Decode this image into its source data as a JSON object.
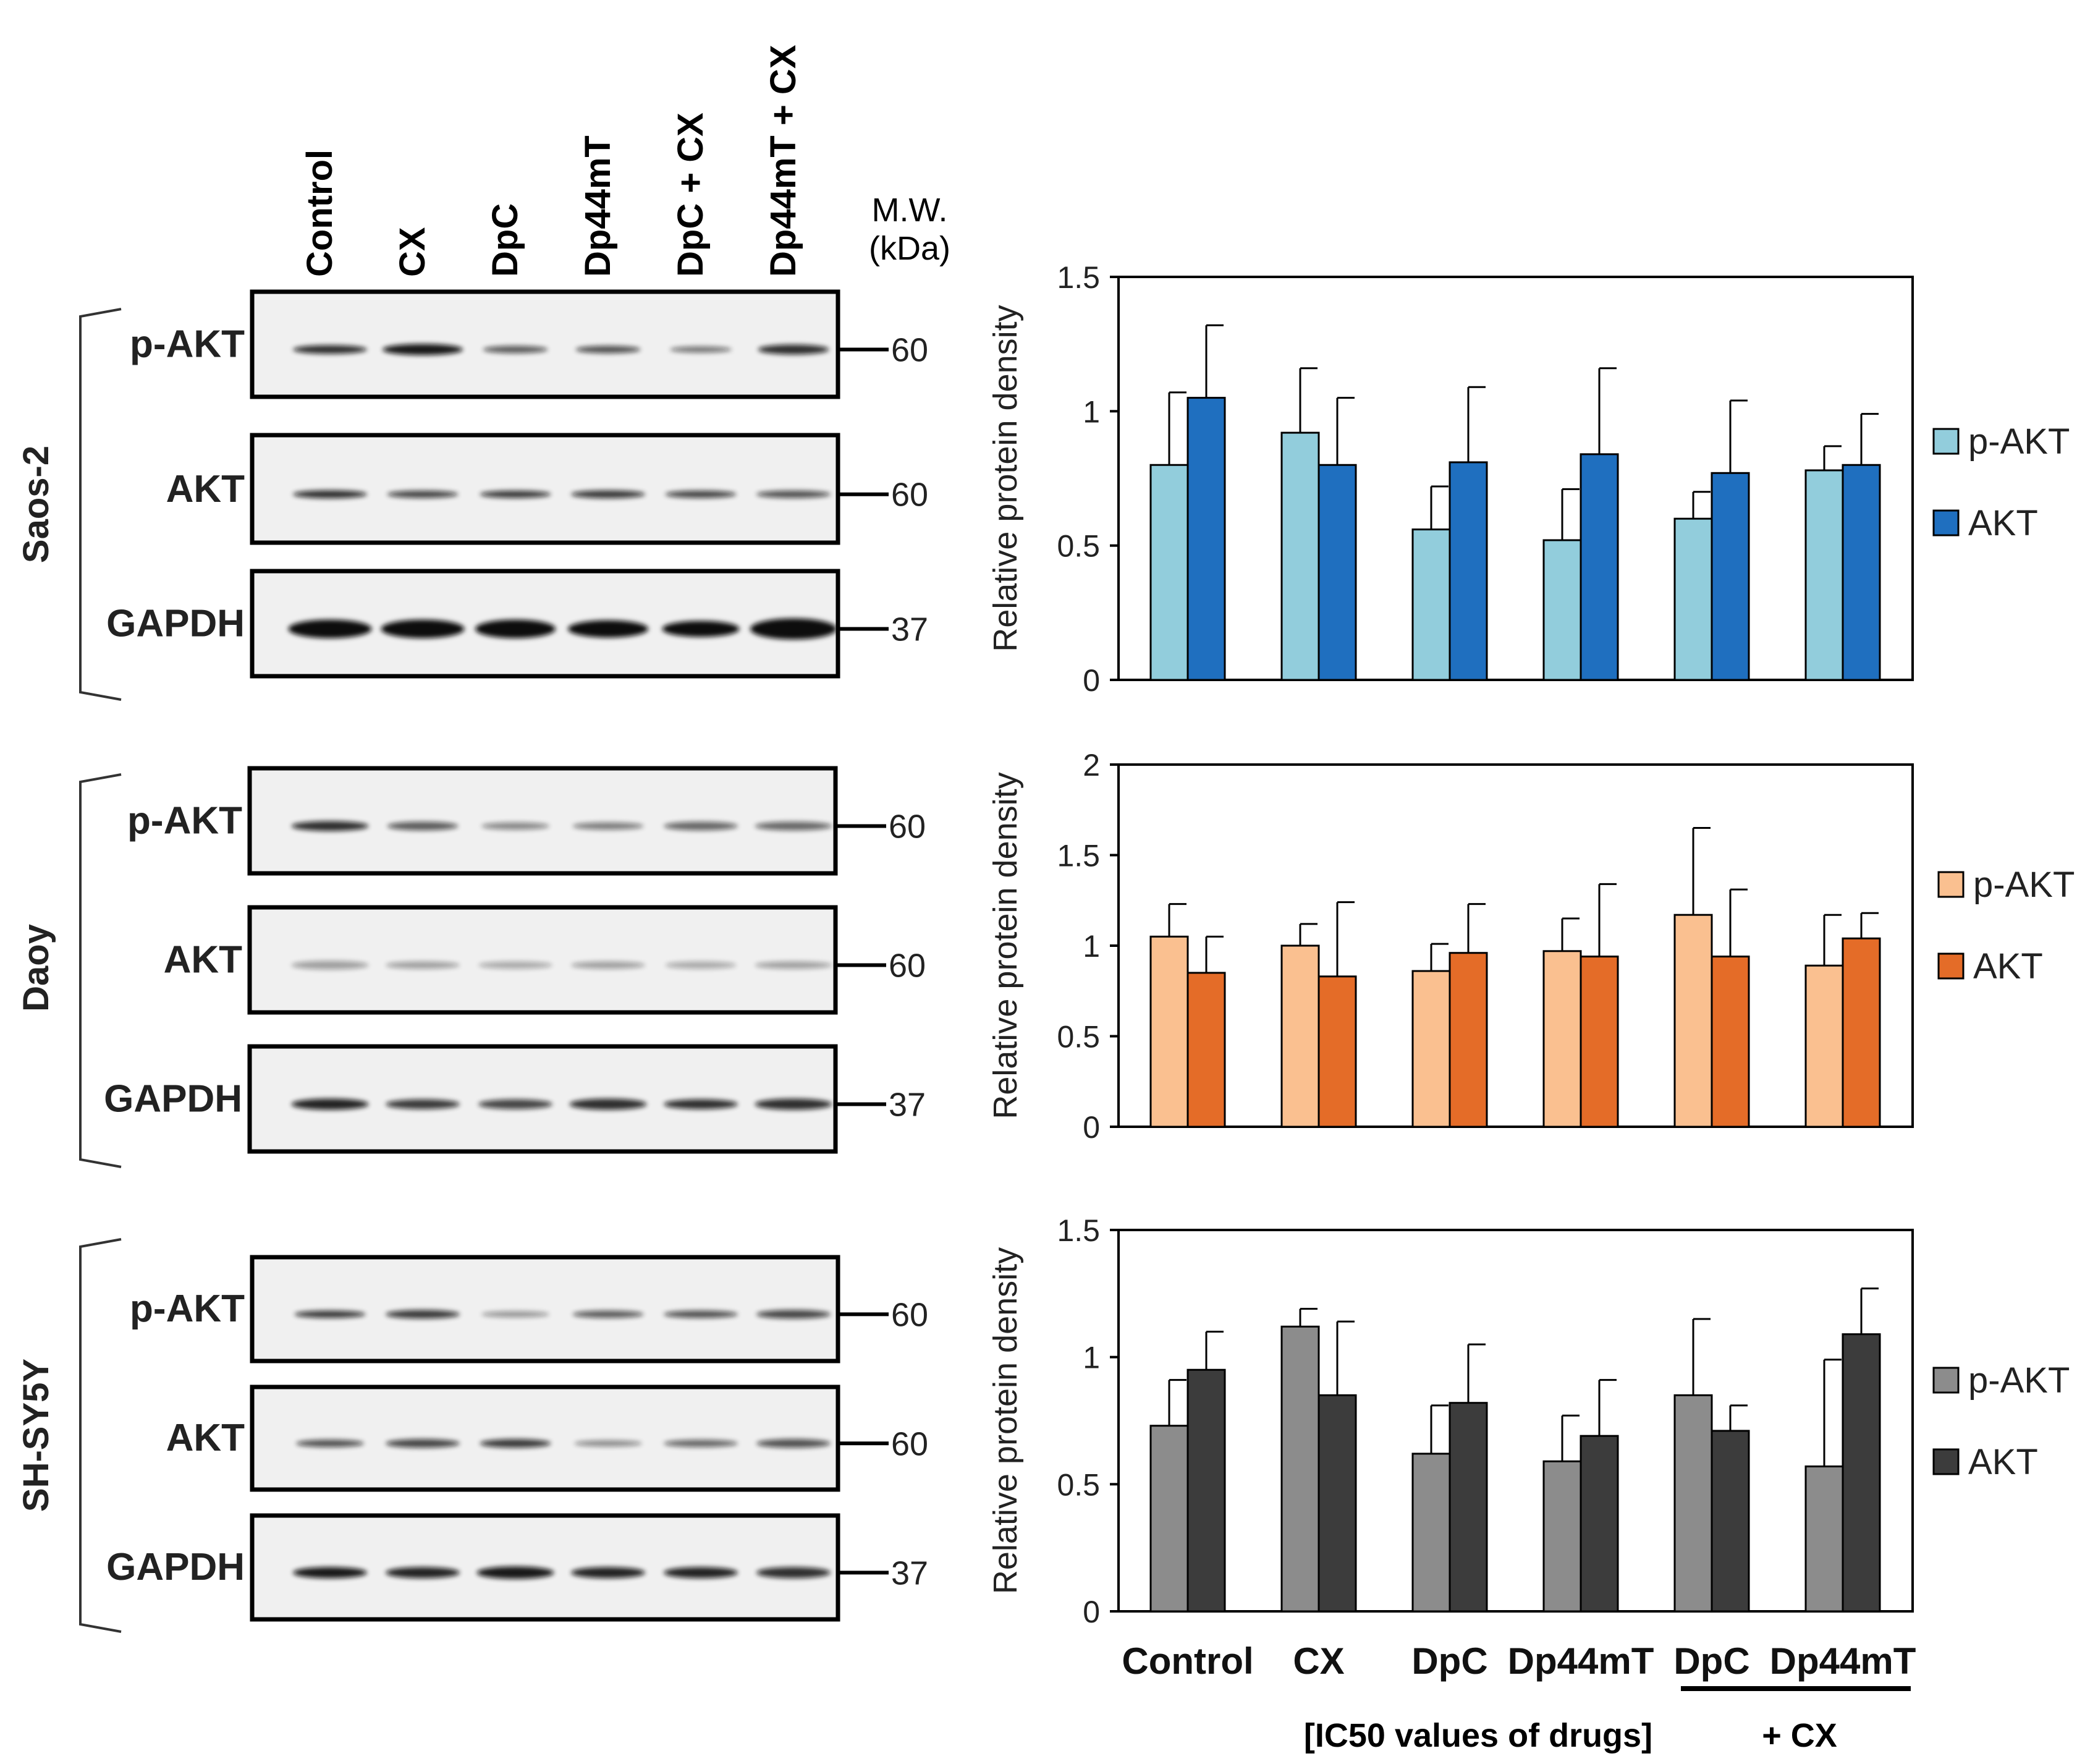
{
  "figure": {
    "lanes": [
      "Control",
      "CX",
      "DpC",
      "Dp44mT",
      "DpC + CX",
      "Dp44mT + CX"
    ],
    "mw_header": [
      "M.W.",
      "(kDa)"
    ],
    "panels": [
      {
        "cell_line": "Saos-2",
        "blots": [
          {
            "label": "p-AKT",
            "mw": "60"
          },
          {
            "label": "AKT",
            "mw": "60"
          },
          {
            "label": "GAPDH",
            "mw": "37"
          }
        ]
      },
      {
        "cell_line": "Daoy",
        "blots": [
          {
            "label": "p-AKT",
            "mw": "60"
          },
          {
            "label": "AKT",
            "mw": "60"
          },
          {
            "label": "GAPDH",
            "mw": "37"
          }
        ]
      },
      {
        "cell_line": "SH-SY5Y",
        "blots": [
          {
            "label": "p-AKT",
            "mw": "60"
          },
          {
            "label": "AKT",
            "mw": "60"
          },
          {
            "label": "GAPDH",
            "mw": "37"
          }
        ]
      }
    ],
    "x_axis_labels": [
      "Control",
      "CX",
      "DpC",
      "Dp44mT",
      "DpC",
      "Dp44mT"
    ],
    "footer": {
      "ic50_note": "[IC50 values of drugs]",
      "combo_note": "+ CX"
    }
  },
  "chart_data": [
    {
      "type": "bar",
      "title": "Saos-2",
      "ylabel": "Relative protein density",
      "ylim": [
        0,
        1.5
      ],
      "yticks": [
        "0",
        "0.5",
        "1",
        "1.5"
      ],
      "ytick_values": [
        0,
        0.5,
        1,
        1.5
      ],
      "categories": [
        "Control",
        "CX",
        "DpC",
        "Dp44mT",
        "DpC + CX",
        "Dp44mT + CX"
      ],
      "series": [
        {
          "name": "p-AKT",
          "color": "#92cddc",
          "values": [
            0.8,
            0.92,
            0.56,
            0.52,
            0.6,
            0.78
          ],
          "errors": [
            0.27,
            0.24,
            0.16,
            0.19,
            0.1,
            0.09
          ]
        },
        {
          "name": "AKT",
          "color": "#1f6fbf",
          "values": [
            1.05,
            0.8,
            0.81,
            0.84,
            0.77,
            0.8
          ],
          "errors": [
            0.27,
            0.25,
            0.28,
            0.32,
            0.27,
            0.19
          ]
        }
      ]
    },
    {
      "type": "bar",
      "title": "Daoy",
      "ylabel": "Relative protein density",
      "ylim": [
        0,
        2
      ],
      "yticks": [
        "0",
        "0.5",
        "1",
        "1.5",
        "2"
      ],
      "ytick_values": [
        0,
        0.5,
        1,
        1.5,
        2
      ],
      "categories": [
        "Control",
        "CX",
        "DpC",
        "Dp44mT",
        "DpC + CX",
        "Dp44mT + CX"
      ],
      "series": [
        {
          "name": "p-AKT",
          "color": "#fac090",
          "values": [
            1.05,
            1.0,
            0.86,
            0.97,
            1.17,
            0.89
          ],
          "errors": [
            0.18,
            0.12,
            0.15,
            0.18,
            0.48,
            0.28
          ]
        },
        {
          "name": "AKT",
          "color": "#e46c28",
          "values": [
            0.85,
            0.83,
            0.96,
            0.94,
            0.94,
            1.04
          ],
          "errors": [
            0.2,
            0.41,
            0.27,
            0.4,
            0.37,
            0.14
          ]
        }
      ]
    },
    {
      "type": "bar",
      "title": "SH-SY5Y",
      "ylabel": "Relative protein density",
      "ylim": [
        0,
        1.5
      ],
      "yticks": [
        "0",
        "0.5",
        "1",
        "1.5"
      ],
      "ytick_values": [
        0,
        0.5,
        1,
        1.5
      ],
      "categories": [
        "Control",
        "CX",
        "DpC",
        "Dp44mT",
        "DpC + CX",
        "Dp44mT + CX"
      ],
      "series": [
        {
          "name": "p-AKT",
          "color": "#8c8c8c",
          "values": [
            0.73,
            1.12,
            0.62,
            0.59,
            0.85,
            0.57
          ],
          "errors": [
            0.18,
            0.07,
            0.19,
            0.18,
            0.3,
            0.42
          ]
        },
        {
          "name": "AKT",
          "color": "#3c3c3c",
          "values": [
            0.95,
            0.85,
            0.82,
            0.69,
            0.71,
            1.09
          ],
          "errors": [
            0.15,
            0.29,
            0.23,
            0.22,
            0.1,
            0.18
          ]
        }
      ]
    }
  ]
}
